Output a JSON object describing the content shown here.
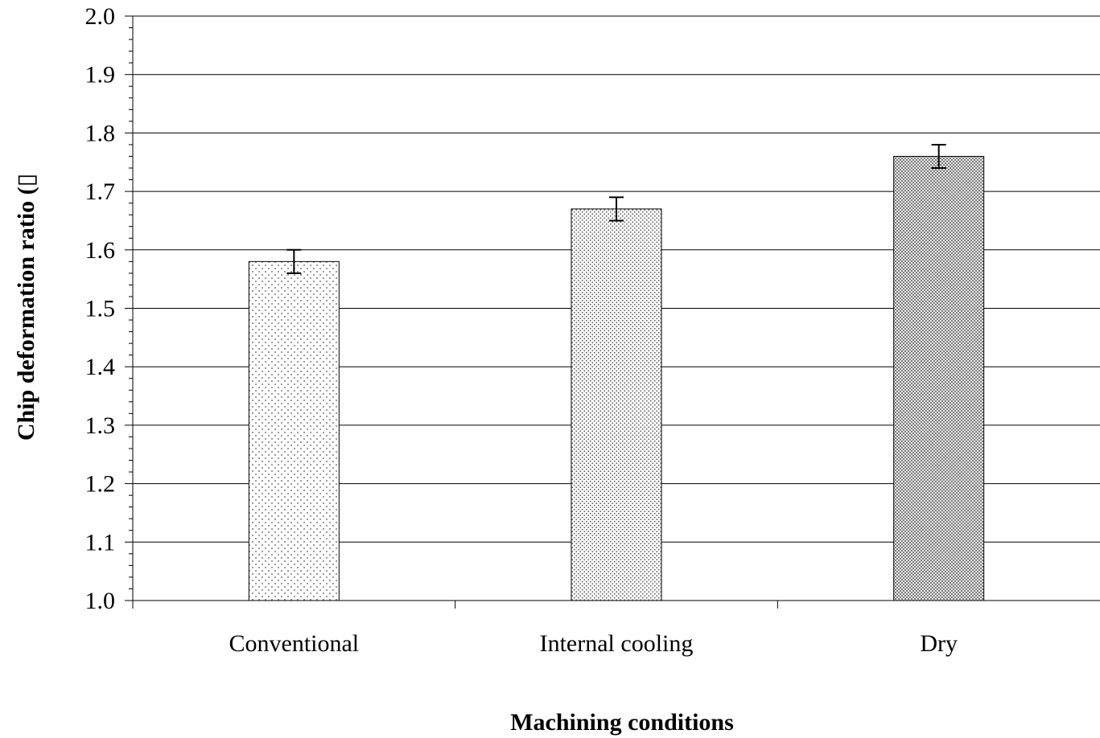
{
  "chart_data": {
    "type": "bar",
    "title": "",
    "xlabel": "Machining conditions",
    "ylabel": "Chip deformation ratio (▯",
    "categories": [
      "Conventional",
      "Internal cooling",
      "Dry"
    ],
    "values": [
      1.58,
      1.67,
      1.76
    ],
    "error": [
      0.02,
      0.02,
      0.02
    ],
    "ylim": [
      1.0,
      2.0
    ],
    "yticks": [
      "1.0",
      "1.1",
      "1.2",
      "1.3",
      "1.4",
      "1.5",
      "1.6",
      "1.7",
      "1.8",
      "1.9",
      "2.0"
    ],
    "grid": true,
    "legend": "none",
    "patterns": [
      "sparse-dots",
      "medium-dots",
      "dense-dots"
    ]
  }
}
